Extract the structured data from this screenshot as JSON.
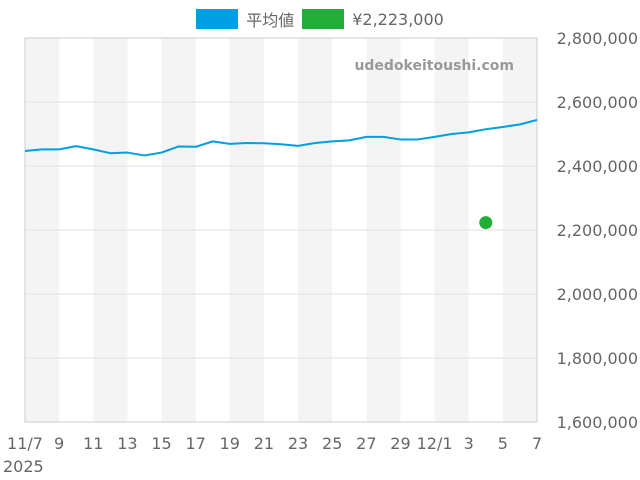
{
  "chart_data": {
    "type": "line",
    "watermark": "udedokeitoushi.com",
    "legend_position": "top-center",
    "grid": true,
    "year_label": "2025",
    "x_tick_labels": [
      "11/7",
      "9",
      "11",
      "13",
      "15",
      "17",
      "19",
      "21",
      "23",
      "25",
      "27",
      "29",
      "12/1",
      "3",
      "5",
      "7"
    ],
    "x_tick_dates": [
      "2025-11-07",
      "2025-11-09",
      "2025-11-11",
      "2025-11-13",
      "2025-11-15",
      "2025-11-17",
      "2025-11-19",
      "2025-11-21",
      "2025-11-23",
      "2025-11-25",
      "2025-11-27",
      "2025-11-29",
      "2025-12-01",
      "2025-12-03",
      "2025-12-05",
      "2025-12-07"
    ],
    "y_tick_labels": [
      "1,600,000",
      "1,800,000",
      "2,000,000",
      "2,200,000",
      "2,400,000",
      "2,600,000",
      "2,800,000"
    ],
    "y_tick_values": [
      1600000,
      1800000,
      2000000,
      2200000,
      2400000,
      2600000,
      2800000
    ],
    "ylim": [
      1600000,
      2800000
    ],
    "xlim": [
      "2025-11-07",
      "2025-12-07"
    ],
    "series": [
      {
        "name": "平均値",
        "color": "#009FE3",
        "style": "line",
        "points": [
          {
            "x": "2025-11-07",
            "y": 2447000
          },
          {
            "x": "2025-11-08",
            "y": 2452000
          },
          {
            "x": "2025-11-09",
            "y": 2452000
          },
          {
            "x": "2025-11-10",
            "y": 2462000
          },
          {
            "x": "2025-11-11",
            "y": 2452000
          },
          {
            "x": "2025-11-12",
            "y": 2440000
          },
          {
            "x": "2025-11-13",
            "y": 2442000
          },
          {
            "x": "2025-11-14",
            "y": 2433000
          },
          {
            "x": "2025-11-15",
            "y": 2442000
          },
          {
            "x": "2025-11-16",
            "y": 2461000
          },
          {
            "x": "2025-11-17",
            "y": 2460000
          },
          {
            "x": "2025-11-18",
            "y": 2477000
          },
          {
            "x": "2025-11-19",
            "y": 2469000
          },
          {
            "x": "2025-11-20",
            "y": 2472000
          },
          {
            "x": "2025-11-21",
            "y": 2471000
          },
          {
            "x": "2025-11-22",
            "y": 2468000
          },
          {
            "x": "2025-11-23",
            "y": 2463000
          },
          {
            "x": "2025-11-24",
            "y": 2472000
          },
          {
            "x": "2025-11-25",
            "y": 2477000
          },
          {
            "x": "2025-11-26",
            "y": 2480000
          },
          {
            "x": "2025-11-27",
            "y": 2491000
          },
          {
            "x": "2025-11-28",
            "y": 2491000
          },
          {
            "x": "2025-11-29",
            "y": 2483000
          },
          {
            "x": "2025-11-30",
            "y": 2483000
          },
          {
            "x": "2025-12-01",
            "y": 2491000
          },
          {
            "x": "2025-12-02",
            "y": 2500000
          },
          {
            "x": "2025-12-03",
            "y": 2505000
          },
          {
            "x": "2025-12-04",
            "y": 2515000
          },
          {
            "x": "2025-12-05",
            "y": 2522000
          },
          {
            "x": "2025-12-06",
            "y": 2530000
          },
          {
            "x": "2025-12-07",
            "y": 2544000
          }
        ]
      },
      {
        "name": "¥2,223,000",
        "color": "#22AC38",
        "style": "point",
        "points": [
          {
            "x": "2025-12-04",
            "y": 2223000
          }
        ]
      }
    ]
  }
}
